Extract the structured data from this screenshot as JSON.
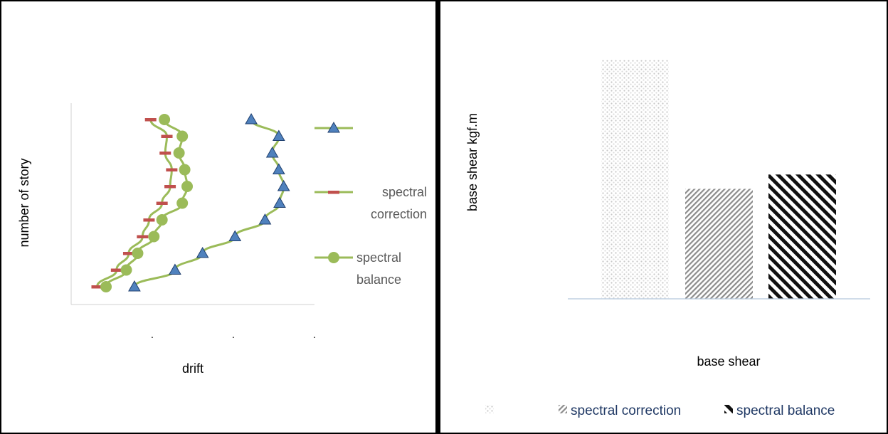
{
  "chart_data": [
    {
      "type": "line",
      "orientation": "horizontal",
      "xlabel": "drift",
      "ylabel": "number of story",
      "grid": false,
      "legend_placement": "right",
      "x_tick_labels": [
        ".",
        ".",
        "."
      ],
      "y": [
        1,
        2,
        3,
        4,
        5,
        6,
        7,
        8,
        9,
        10,
        11
      ],
      "series": [
        {
          "name": "",
          "marker": "triangle",
          "color": "#9bbb59",
          "marker_color": "#4f81bd",
          "values": [
            0.78,
            1.28,
            1.62,
            2.02,
            2.39,
            2.57,
            2.62,
            2.56,
            2.48,
            2.56,
            2.22
          ]
        },
        {
          "name": "spectral correction",
          "marker": "dash",
          "color": "#9bbb59",
          "marker_color": "#c0504d",
          "values": [
            0.32,
            0.56,
            0.71,
            0.88,
            0.96,
            1.12,
            1.22,
            1.24,
            1.16,
            1.18,
            0.98
          ]
        },
        {
          "name": "spectral balance",
          "marker": "circle",
          "color": "#9bbb59",
          "marker_color": "#9bbb59",
          "values": [
            0.43,
            0.68,
            0.82,
            1.02,
            1.12,
            1.37,
            1.43,
            1.4,
            1.33,
            1.37,
            1.15
          ]
        }
      ]
    },
    {
      "type": "bar",
      "xlabel": "base shear",
      "ylabel": "base shear kgf.m",
      "grid": false,
      "legend_placement": "bottom",
      "ylim": [
        0,
        1
      ],
      "categories": [
        "",
        "spectral correction",
        "spectral balance"
      ],
      "values": [
        1.0,
        0.46,
        0.52
      ],
      "patterns": [
        "dots",
        "fine-diagonal-left",
        "thick-diagonal-right"
      ],
      "legend_entries": [
        "",
        "spectral correction",
        "spectral balance"
      ],
      "legend_color": "#1f3864"
    }
  ]
}
